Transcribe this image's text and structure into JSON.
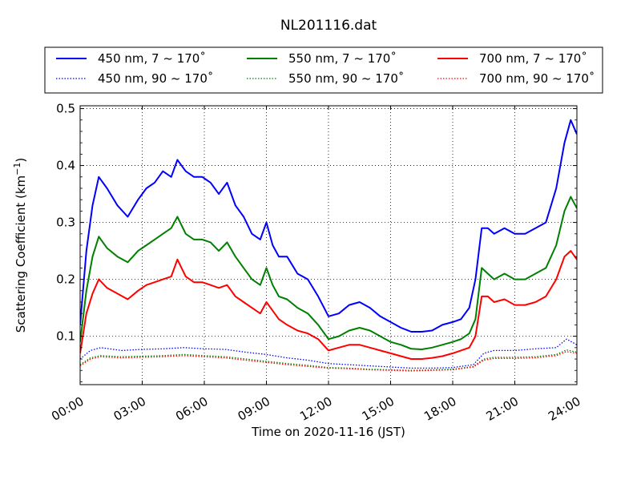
{
  "chart_data": {
    "type": "line",
    "title": "NL201116.dat",
    "xlabel": "Time on 2020-11-16 (JST)",
    "ylabel": "Scattering Coefficient (km",
    "ylabel_sup": "−1",
    "ylabel_close": ")",
    "xlim": [
      0,
      24
    ],
    "ylim": [
      0.015,
      0.505
    ],
    "x_ticks": [
      0,
      3,
      6,
      9,
      12,
      15,
      18,
      21,
      24
    ],
    "x_tick_labels": [
      "00:00",
      "03:00",
      "06:00",
      "09:00",
      "12:00",
      "15:00",
      "18:00",
      "21:00",
      "24:00"
    ],
    "y_ticks": [
      0.1,
      0.2,
      0.3,
      0.4,
      0.5
    ],
    "y_tick_labels": [
      "0.1",
      "0.2",
      "0.3",
      "0.4",
      "0.5"
    ],
    "grid": true,
    "legend_placement": "top",
    "legend_columns": 3,
    "series": [
      {
        "name": "450 nm, 7 ~ 170˚",
        "color": "#0000ff",
        "dash": "solid",
        "x": [
          0,
          0.3,
          0.6,
          0.9,
          1.3,
          1.8,
          2.3,
          2.8,
          3.2,
          3.6,
          4.0,
          4.4,
          4.7,
          5.1,
          5.5,
          5.9,
          6.3,
          6.7,
          7.1,
          7.5,
          7.9,
          8.3,
          8.7,
          9.0,
          9.3,
          9.6,
          10.0,
          10.5,
          11.0,
          11.5,
          12.0,
          12.5,
          13.0,
          13.5,
          14.0,
          14.5,
          15.0,
          15.5,
          16.0,
          16.5,
          17.0,
          17.5,
          18.0,
          18.4,
          18.8,
          19.1,
          19.4,
          19.7,
          20.0,
          20.5,
          21.0,
          21.5,
          22.0,
          22.5,
          23.0,
          23.4,
          23.7,
          24.0
        ],
        "y": [
          0.12,
          0.25,
          0.33,
          0.38,
          0.36,
          0.33,
          0.31,
          0.34,
          0.36,
          0.37,
          0.39,
          0.38,
          0.41,
          0.39,
          0.38,
          0.38,
          0.37,
          0.35,
          0.37,
          0.33,
          0.31,
          0.28,
          0.27,
          0.3,
          0.26,
          0.24,
          0.24,
          0.21,
          0.2,
          0.17,
          0.135,
          0.14,
          0.155,
          0.16,
          0.15,
          0.135,
          0.125,
          0.115,
          0.108,
          0.108,
          0.11,
          0.12,
          0.125,
          0.13,
          0.15,
          0.2,
          0.29,
          0.29,
          0.28,
          0.29,
          0.28,
          0.28,
          0.29,
          0.3,
          0.36,
          0.44,
          0.48,
          0.455
        ]
      },
      {
        "name": "550 nm, 7 ~ 170˚",
        "color": "#008000",
        "dash": "solid",
        "x": [
          0,
          0.3,
          0.6,
          0.9,
          1.3,
          1.8,
          2.3,
          2.8,
          3.2,
          3.6,
          4.0,
          4.4,
          4.7,
          5.1,
          5.5,
          5.9,
          6.3,
          6.7,
          7.1,
          7.5,
          7.9,
          8.3,
          8.7,
          9.0,
          9.3,
          9.6,
          10.0,
          10.5,
          11.0,
          11.5,
          12.0,
          12.5,
          13.0,
          13.5,
          14.0,
          14.5,
          15.0,
          15.5,
          16.0,
          16.5,
          17.0,
          17.5,
          18.0,
          18.4,
          18.8,
          19.1,
          19.4,
          19.7,
          20.0,
          20.5,
          21.0,
          21.5,
          22.0,
          22.5,
          23.0,
          23.4,
          23.7,
          24.0
        ],
        "y": [
          0.09,
          0.18,
          0.24,
          0.275,
          0.255,
          0.24,
          0.23,
          0.25,
          0.26,
          0.27,
          0.28,
          0.29,
          0.31,
          0.28,
          0.27,
          0.27,
          0.265,
          0.25,
          0.265,
          0.24,
          0.22,
          0.2,
          0.19,
          0.22,
          0.19,
          0.17,
          0.165,
          0.15,
          0.14,
          0.12,
          0.095,
          0.1,
          0.11,
          0.115,
          0.11,
          0.1,
          0.09,
          0.085,
          0.078,
          0.077,
          0.08,
          0.085,
          0.09,
          0.095,
          0.105,
          0.13,
          0.22,
          0.21,
          0.2,
          0.21,
          0.2,
          0.2,
          0.21,
          0.22,
          0.26,
          0.32,
          0.345,
          0.325
        ]
      },
      {
        "name": "700 nm, 7 ~ 170˚",
        "color": "#ff0000",
        "dash": "solid",
        "x": [
          0,
          0.3,
          0.6,
          0.9,
          1.3,
          1.8,
          2.3,
          2.8,
          3.2,
          3.6,
          4.0,
          4.4,
          4.7,
          5.1,
          5.5,
          5.9,
          6.3,
          6.7,
          7.1,
          7.5,
          7.9,
          8.3,
          8.7,
          9.0,
          9.3,
          9.6,
          10.0,
          10.5,
          11.0,
          11.5,
          12.0,
          12.5,
          13.0,
          13.5,
          14.0,
          14.5,
          15.0,
          15.5,
          16.0,
          16.5,
          17.0,
          17.5,
          18.0,
          18.4,
          18.8,
          19.1,
          19.4,
          19.7,
          20.0,
          20.5,
          21.0,
          21.5,
          22.0,
          22.5,
          23.0,
          23.4,
          23.7,
          24.0
        ],
        "y": [
          0.07,
          0.14,
          0.175,
          0.2,
          0.185,
          0.175,
          0.165,
          0.18,
          0.19,
          0.195,
          0.2,
          0.205,
          0.235,
          0.205,
          0.195,
          0.195,
          0.19,
          0.185,
          0.19,
          0.17,
          0.16,
          0.15,
          0.14,
          0.16,
          0.145,
          0.13,
          0.12,
          0.11,
          0.105,
          0.095,
          0.075,
          0.08,
          0.085,
          0.085,
          0.08,
          0.075,
          0.07,
          0.065,
          0.06,
          0.06,
          0.062,
          0.065,
          0.07,
          0.075,
          0.08,
          0.1,
          0.17,
          0.17,
          0.16,
          0.165,
          0.155,
          0.155,
          0.16,
          0.17,
          0.2,
          0.24,
          0.25,
          0.235
        ]
      },
      {
        "name": "450 nm, 90 ~ 170˚",
        "color": "#0000ff",
        "dash": "dotted",
        "x": [
          0,
          0.5,
          1,
          2,
          3,
          4,
          5,
          6,
          7,
          8,
          9,
          10,
          11,
          12,
          13,
          14,
          15,
          16,
          17,
          18,
          19,
          19.5,
          20,
          21,
          22,
          23,
          23.5,
          24
        ],
        "y": [
          0.06,
          0.075,
          0.08,
          0.075,
          0.077,
          0.078,
          0.08,
          0.078,
          0.077,
          0.072,
          0.068,
          0.062,
          0.058,
          0.052,
          0.05,
          0.048,
          0.046,
          0.044,
          0.044,
          0.045,
          0.05,
          0.07,
          0.075,
          0.075,
          0.078,
          0.08,
          0.095,
          0.085
        ]
      },
      {
        "name": "550 nm, 90 ~ 170˚",
        "color": "#008000",
        "dash": "dotted",
        "x": [
          0,
          0.5,
          1,
          2,
          3,
          4,
          5,
          6,
          7,
          8,
          9,
          10,
          11,
          12,
          13,
          14,
          15,
          16,
          17,
          18,
          19,
          19.5,
          20,
          21,
          22,
          23,
          23.5,
          24
        ],
        "y": [
          0.05,
          0.062,
          0.066,
          0.064,
          0.065,
          0.066,
          0.068,
          0.066,
          0.064,
          0.06,
          0.056,
          0.052,
          0.049,
          0.045,
          0.044,
          0.042,
          0.041,
          0.04,
          0.041,
          0.042,
          0.047,
          0.06,
          0.063,
          0.063,
          0.064,
          0.068,
          0.076,
          0.072
        ]
      },
      {
        "name": "700 nm, 90 ~ 170˚",
        "color": "#ff0000",
        "dash": "dotted",
        "x": [
          0,
          0.5,
          1,
          2,
          3,
          4,
          5,
          6,
          7,
          8,
          9,
          10,
          11,
          12,
          13,
          14,
          15,
          16,
          17,
          18,
          19,
          19.5,
          20,
          21,
          22,
          23,
          23.5,
          24
        ],
        "y": [
          0.048,
          0.06,
          0.064,
          0.062,
          0.063,
          0.064,
          0.066,
          0.064,
          0.062,
          0.058,
          0.054,
          0.05,
          0.047,
          0.044,
          0.043,
          0.041,
          0.04,
          0.039,
          0.04,
          0.041,
          0.046,
          0.058,
          0.061,
          0.061,
          0.062,
          0.066,
          0.073,
          0.07
        ]
      }
    ]
  }
}
